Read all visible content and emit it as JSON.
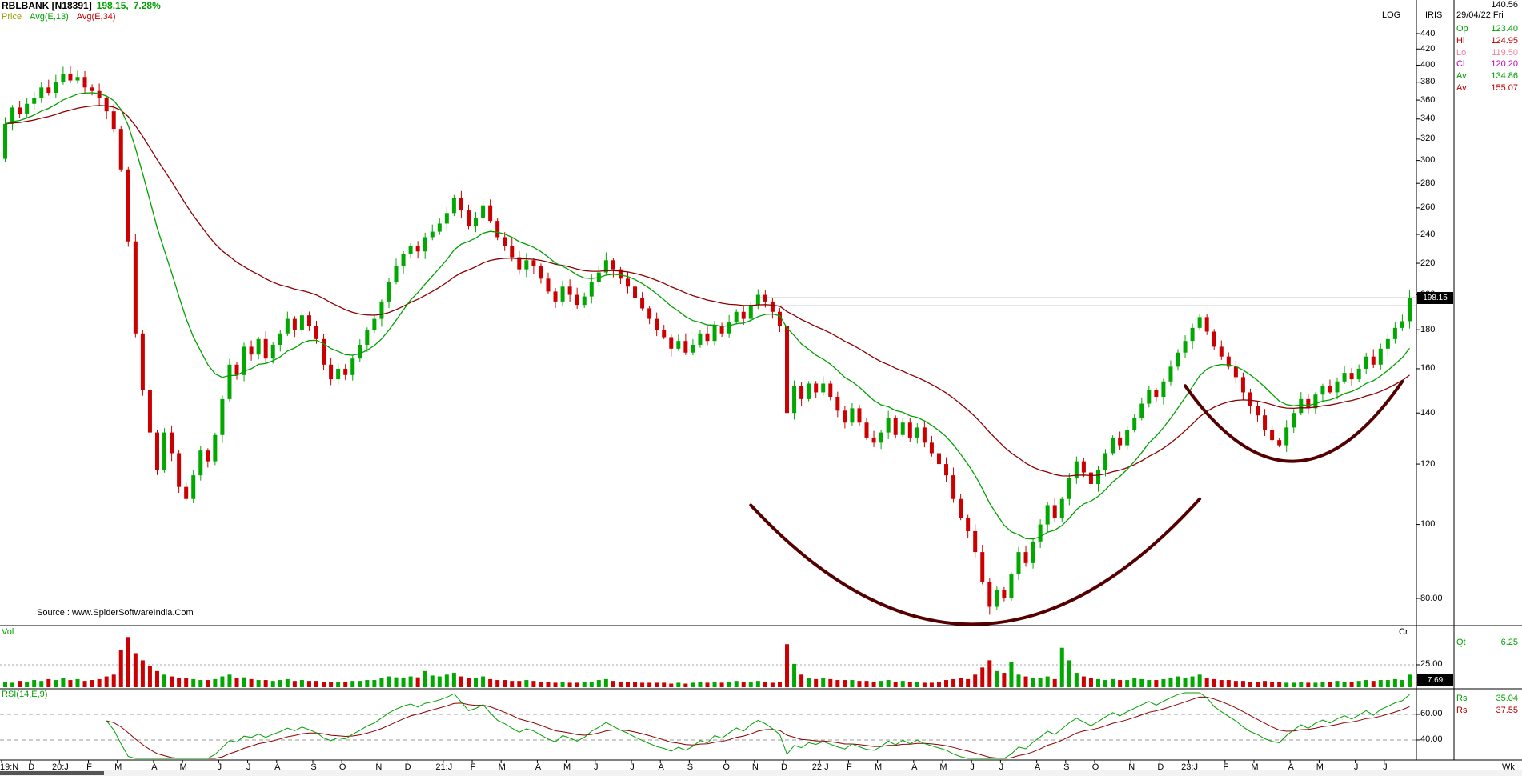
{
  "header": {
    "symbol": "RBLBANK [N18391]",
    "price": "198.15,",
    "change_pct": "7.28%"
  },
  "legend": {
    "price": "Price",
    "avg1": "Avg(E,13)",
    "avg2": "Avg(E,34)"
  },
  "top_right": {
    "scale_label": "LOG",
    "app_name": "IRIS",
    "pointer_value": "140.56",
    "date": "29/04/22 Fri",
    "quote_rows": [
      {
        "label": "Op",
        "value": "123.40",
        "color": "#00a000"
      },
      {
        "label": "Hi",
        "value": "124.95",
        "color": "#c00000"
      },
      {
        "label": "Lo",
        "value": "119.50",
        "color": "#f080a0"
      },
      {
        "label": "Cl",
        "value": "120.20",
        "color": "#c000c0"
      },
      {
        "label": "Av",
        "value": "134.86",
        "color": "#00a000"
      },
      {
        "label": "Av",
        "value": "155.07",
        "color": "#c00000"
      }
    ]
  },
  "source_text": "Source : www.SpiderSoftwareIndia.Com",
  "price_axis": {
    "ticks": [
      "440",
      "420",
      "400",
      "380",
      "360",
      "340",
      "320",
      "300",
      "280",
      "260",
      "240",
      "220",
      "200",
      "180",
      "160",
      "140",
      "120",
      "100",
      "80.00"
    ],
    "marker": "198.15"
  },
  "volume_panel": {
    "label": "Vol",
    "unit": "Cr",
    "tick": "25.00",
    "current": "7.69",
    "qt_label": "Qt",
    "qt_value": "6.25"
  },
  "rsi_panel": {
    "label": "RSI(14,E,9)",
    "tick_upper": "60.00",
    "tick_lower": "40.00",
    "rows": [
      {
        "label": "Rs",
        "value": "35.04",
        "color": "#00a000"
      },
      {
        "label": "Rs",
        "value": "37.55",
        "color": "#b00000"
      }
    ]
  },
  "time_axis": {
    "labels": [
      "19:N",
      "D",
      "20:J",
      "F",
      "M",
      "A",
      "M",
      "J",
      "J",
      "A",
      "S",
      "O",
      "N",
      "D",
      "21:J",
      "F",
      "M",
      "A",
      "M",
      "J",
      "J",
      "A",
      "S",
      "O",
      "N",
      "D",
      "22:J",
      "F",
      "M",
      "A",
      "M",
      "J",
      "J",
      "A",
      "S",
      "O",
      "N",
      "D",
      "23:J",
      "F",
      "M",
      "A",
      "M",
      "J",
      "J"
    ],
    "month_weeks": [
      4,
      4,
      4,
      4,
      5,
      4,
      5,
      4,
      4,
      5,
      4,
      5,
      4,
      5,
      4,
      4,
      5,
      4,
      4,
      5,
      4,
      4,
      5,
      4,
      4,
      5,
      4,
      4,
      5,
      4,
      4,
      4,
      5,
      4,
      4,
      5,
      4,
      4,
      5,
      4,
      5,
      4,
      5,
      4,
      4
    ],
    "unit": "Wk"
  },
  "colors": {
    "up": "#00a800",
    "down": "#cc0000",
    "ema_fast": "#00a000",
    "ema_slow": "#8b0000",
    "arc": "#550000",
    "accent_green": "#00a000",
    "accent_red": "#c00000",
    "price_legend": "#9c9c00",
    "guide_gray": "#999999"
  },
  "chart_data": {
    "type": "candlestick",
    "title": "RBLBANK weekly candlestick chart with EMA(13), EMA(34), volume and RSI(14,E,9)",
    "symbol": "RBLBANK",
    "timeframe": "weekly",
    "scale": "log",
    "ylim": [
      74,
      450
    ],
    "last_price": 198.15,
    "change_pct": 7.28,
    "x_months": [
      "19:N",
      "D",
      "20:J",
      "F",
      "M",
      "A",
      "M",
      "J",
      "J",
      "A",
      "S",
      "O",
      "N",
      "D",
      "21:J",
      "F",
      "M",
      "A",
      "M",
      "J",
      "J",
      "A",
      "S",
      "O",
      "N",
      "D",
      "22:J",
      "F",
      "M",
      "A",
      "M",
      "J",
      "J",
      "A",
      "S",
      "O",
      "N",
      "D",
      "23:J",
      "F",
      "M",
      "A",
      "M",
      "J",
      "J"
    ],
    "closes": [
      335,
      352,
      345,
      356,
      362,
      374,
      368,
      380,
      390,
      382,
      386,
      374,
      370,
      362,
      348,
      330,
      292,
      235,
      178,
      150,
      132,
      118,
      132,
      124,
      112,
      108,
      116,
      125,
      121,
      131,
      146,
      162,
      157,
      171,
      167,
      175,
      165,
      172,
      178,
      186,
      180,
      188,
      182,
      175,
      162,
      155,
      160,
      157,
      165,
      172,
      180,
      186,
      196,
      208,
      218,
      226,
      232,
      228,
      238,
      242,
      248,
      256,
      268,
      258,
      246,
      252,
      262,
      250,
      238,
      232,
      224,
      216,
      222,
      218,
      210,
      202,
      196,
      205,
      200,
      194,
      199,
      208,
      214,
      222,
      216,
      210,
      205,
      198,
      192,
      186,
      180,
      176,
      170,
      174,
      168,
      172,
      178,
      174,
      182,
      178,
      184,
      190,
      186,
      194,
      200,
      196,
      190,
      182,
      140,
      152,
      146,
      153,
      149,
      153,
      147,
      141,
      136,
      142,
      136,
      130,
      128,
      132,
      138,
      131,
      136,
      130,
      134,
      128,
      124,
      120,
      116,
      108,
      102,
      98,
      92,
      84,
      78,
      82,
      80,
      86,
      92,
      89,
      95,
      100,
      106,
      102,
      108,
      115,
      121,
      117,
      113,
      118,
      124,
      130,
      127,
      133,
      138,
      144,
      150,
      147,
      154,
      161,
      168,
      174,
      181,
      187,
      179,
      171,
      166,
      161,
      156,
      149,
      143,
      139,
      133,
      129,
      127,
      134,
      140,
      146,
      142,
      148,
      152,
      149,
      154,
      158,
      155,
      160,
      166,
      162,
      170,
      175,
      181,
      184.7,
      198.15
    ],
    "volumes": [
      6,
      5,
      7,
      6,
      8,
      7,
      9,
      8,
      10,
      8,
      9,
      7,
      8,
      9,
      12,
      14,
      42,
      56,
      38,
      30,
      24,
      18,
      14,
      12,
      10,
      10,
      9,
      8,
      8,
      9,
      12,
      14,
      10,
      11,
      9,
      8,
      8,
      7,
      8,
      9,
      7,
      8,
      7,
      7,
      6,
      6,
      6,
      6,
      7,
      7,
      8,
      8,
      10,
      12,
      11,
      10,
      12,
      11,
      18,
      13,
      12,
      14,
      16,
      12,
      10,
      10,
      12,
      9,
      8,
      8,
      7,
      7,
      8,
      7,
      6,
      6,
      5,
      6,
      5,
      5,
      6,
      6,
      8,
      9,
      7,
      6,
      6,
      6,
      5,
      5,
      5,
      5,
      4,
      5,
      4,
      5,
      6,
      5,
      6,
      5,
      6,
      7,
      6,
      6,
      7,
      6,
      5,
      6,
      48,
      26,
      14,
      10,
      9,
      10,
      9,
      8,
      8,
      8,
      7,
      7,
      6,
      7,
      8,
      6,
      7,
      6,
      6,
      5,
      5,
      6,
      8,
      9,
      10,
      9,
      14,
      22,
      30,
      18,
      16,
      28,
      14,
      12,
      10,
      10,
      12,
      9,
      44,
      30,
      16,
      12,
      10,
      9,
      8,
      9,
      8,
      8,
      10,
      9,
      8,
      8,
      9,
      10,
      12,
      10,
      12,
      14,
      10,
      9,
      8,
      8,
      7,
      7,
      6,
      6,
      7,
      6,
      6,
      5,
      5,
      6,
      5,
      5,
      6,
      6,
      7,
      6,
      6,
      7,
      8,
      7,
      8,
      8,
      9,
      8,
      14
    ],
    "overlays": [
      {
        "name": "EMA13",
        "type": "ema",
        "period": 13,
        "color": "#00a000"
      },
      {
        "name": "EMA34",
        "type": "ema",
        "period": 34,
        "color": "#8b0000"
      }
    ],
    "indicators": [
      {
        "name": "RSI",
        "params": "14,E,9",
        "color": "#00a000",
        "signal_color": "#8b0000",
        "guides": [
          60,
          40
        ]
      }
    ],
    "annotations": {
      "hlines": [
        {
          "price": 198.15,
          "from_week": 104,
          "color": "#222222"
        },
        {
          "price": 193.5,
          "from_week": 107,
          "color": "#999999"
        }
      ],
      "arcs": [
        {
          "from_week": 103,
          "from_price": 106,
          "to_week": 165,
          "to_price": 108,
          "bottom_price": 74
        },
        {
          "from_week": 163,
          "from_price": 152,
          "to_week": 193,
          "to_price": 154,
          "bottom_price": 121
        }
      ]
    }
  }
}
